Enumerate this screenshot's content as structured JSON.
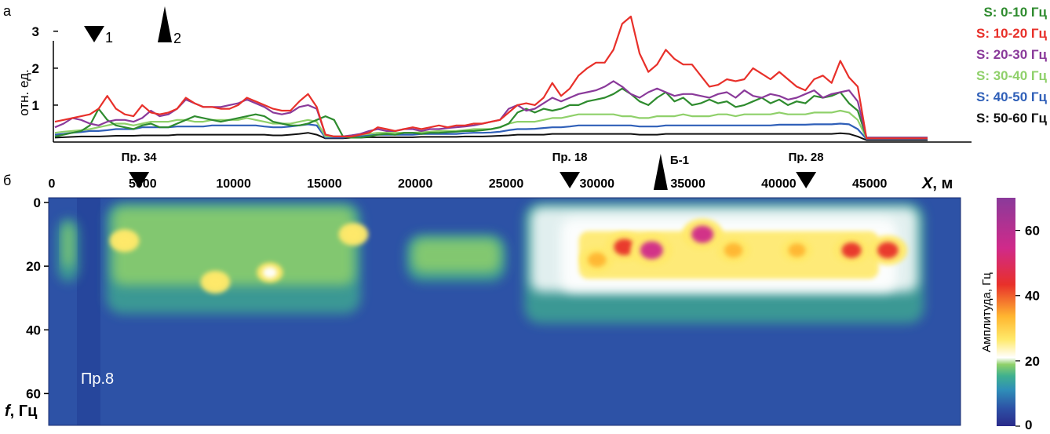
{
  "colors": {
    "S0_10": "#2e8b2e",
    "S10_20": "#e8302a",
    "S20_30": "#8a3a9a",
    "S30_40": "#8fd06a",
    "S40_50": "#2f5fb8",
    "S50_60": "#111111",
    "heat_background": "#2d52a6"
  },
  "chart_data": [
    {
      "panel": "а",
      "type": "line",
      "ylabel": "отн. ед.",
      "ylim": [
        0,
        3.4
      ],
      "yticks": [
        "1",
        "2",
        "3"
      ],
      "xlim": [
        0,
        50000
      ],
      "markers": [
        {
          "label": "1",
          "x": 2500,
          "direction": "down"
        },
        {
          "label": "2",
          "x": 6200,
          "direction": "up"
        }
      ],
      "legend": [
        "S:  0-10 Гц",
        "S: 10-20 Гц",
        "S: 20-30 Гц",
        "S: 30-40 Гц",
        "S: 40-50 Гц",
        "S: 50-60 Гц"
      ],
      "legend_position": "right",
      "x": [
        0,
        500,
        1000,
        1500,
        2000,
        2500,
        3000,
        3500,
        4000,
        4500,
        5000,
        5500,
        6000,
        6500,
        7000,
        7500,
        8000,
        8500,
        9000,
        9500,
        10000,
        10500,
        11000,
        11500,
        12000,
        12500,
        13000,
        13500,
        14000,
        14500,
        15000,
        15500,
        16000,
        16500,
        17000,
        17500,
        18000,
        18500,
        19000,
        19500,
        20000,
        20500,
        21000,
        21500,
        22000,
        22500,
        23000,
        23500,
        24000,
        24500,
        25000,
        25500,
        26000,
        26500,
        27000,
        27500,
        28000,
        28500,
        29000,
        29500,
        30000,
        30500,
        31000,
        31500,
        32000,
        32500,
        33000,
        33500,
        34000,
        34500,
        35000,
        35500,
        36000,
        36500,
        37000,
        37500,
        38000,
        38500,
        39000,
        39500,
        40000,
        40500,
        41000,
        41500,
        42000,
        42500,
        43000,
        43500,
        44000,
        44500,
        45000,
        45500,
        46000,
        46500,
        47000,
        47500,
        48000,
        48500,
        49000,
        49500,
        50000
      ],
      "series": [
        {
          "name": "S:  0-10 Гц",
          "values": [
            0.15,
            0.2,
            0.25,
            0.3,
            0.45,
            0.9,
            0.6,
            0.45,
            0.4,
            0.35,
            0.45,
            0.5,
            0.4,
            0.4,
            0.5,
            0.6,
            0.7,
            0.65,
            0.6,
            0.55,
            0.6,
            0.65,
            0.7,
            0.75,
            0.7,
            0.55,
            0.5,
            0.45,
            0.45,
            0.5,
            0.6,
            0.7,
            0.6,
            0.15,
            0.12,
            0.12,
            0.15,
            0.2,
            0.22,
            0.2,
            0.25,
            0.25,
            0.22,
            0.25,
            0.25,
            0.27,
            0.28,
            0.3,
            0.3,
            0.32,
            0.35,
            0.4,
            0.5,
            0.8,
            0.9,
            0.8,
            0.9,
            0.85,
            0.9,
            1.0,
            1.0,
            1.1,
            1.15,
            1.2,
            1.3,
            1.45,
            1.3,
            1.1,
            1.0,
            1.2,
            1.35,
            1.1,
            1.2,
            1.0,
            1.05,
            1.15,
            1.05,
            1.1,
            0.95,
            1.0,
            1.1,
            1.2,
            1.05,
            1.15,
            1.0,
            1.1,
            1.05,
            1.25,
            1.2,
            1.25,
            1.35,
            1.05,
            0.85,
            0.12,
            0.12,
            0.12,
            0.12,
            0.12,
            0.12,
            0.12,
            0.12
          ]
        },
        {
          "name": "S: 10-20 Гц",
          "values": [
            0.55,
            0.6,
            0.65,
            0.7,
            0.75,
            0.9,
            1.25,
            0.9,
            0.75,
            0.7,
            1.0,
            0.8,
            0.75,
            0.8,
            0.9,
            1.2,
            1.05,
            0.95,
            0.95,
            0.9,
            0.9,
            1.0,
            1.2,
            1.1,
            1.0,
            0.9,
            0.85,
            0.85,
            1.1,
            1.3,
            0.95,
            0.2,
            0.15,
            0.15,
            0.15,
            0.2,
            0.25,
            0.4,
            0.35,
            0.3,
            0.35,
            0.4,
            0.35,
            0.4,
            0.45,
            0.4,
            0.45,
            0.45,
            0.5,
            0.5,
            0.55,
            0.6,
            0.8,
            1.0,
            1.05,
            1.0,
            1.2,
            1.6,
            1.25,
            1.45,
            1.8,
            2.0,
            2.15,
            2.15,
            2.5,
            3.2,
            3.4,
            2.4,
            1.9,
            2.1,
            2.5,
            2.25,
            2.1,
            2.1,
            1.8,
            1.5,
            1.55,
            1.7,
            1.65,
            1.7,
            2.0,
            1.85,
            1.7,
            1.9,
            1.7,
            1.5,
            1.4,
            1.7,
            1.8,
            1.6,
            2.2,
            1.75,
            1.5,
            0.1,
            0.1,
            0.1,
            0.1,
            0.1,
            0.1,
            0.1,
            0.1
          ]
        },
        {
          "name": "S: 20-30 Гц",
          "values": [
            0.4,
            0.5,
            0.65,
            0.6,
            0.5,
            0.45,
            0.55,
            0.6,
            0.6,
            0.55,
            0.65,
            0.85,
            0.7,
            0.75,
            0.9,
            1.15,
            1.05,
            0.95,
            0.95,
            0.95,
            1.0,
            1.05,
            1.15,
            1.05,
            0.95,
            0.8,
            0.75,
            0.8,
            0.95,
            1.0,
            0.9,
            0.2,
            0.15,
            0.15,
            0.18,
            0.22,
            0.3,
            0.35,
            0.3,
            0.3,
            0.35,
            0.35,
            0.3,
            0.35,
            0.35,
            0.38,
            0.4,
            0.42,
            0.45,
            0.5,
            0.55,
            0.6,
            0.9,
            1.0,
            0.85,
            0.9,
            1.05,
            1.2,
            1.1,
            1.2,
            1.3,
            1.35,
            1.4,
            1.5,
            1.65,
            1.5,
            1.3,
            1.2,
            1.35,
            1.45,
            1.35,
            1.25,
            1.3,
            1.3,
            1.25,
            1.2,
            1.3,
            1.35,
            1.2,
            1.4,
            1.25,
            1.2,
            1.3,
            1.25,
            1.15,
            1.2,
            1.3,
            1.4,
            1.2,
            1.3,
            1.35,
            1.4,
            1.1,
            0.12,
            0.12,
            0.12,
            0.12,
            0.12,
            0.12,
            0.12,
            0.12
          ]
        },
        {
          "name": "S: 30-40 Гц",
          "values": [
            0.25,
            0.28,
            0.3,
            0.32,
            0.35,
            0.4,
            0.45,
            0.5,
            0.5,
            0.45,
            0.5,
            0.55,
            0.55,
            0.55,
            0.6,
            0.6,
            0.55,
            0.55,
            0.6,
            0.6,
            0.6,
            0.6,
            0.65,
            0.6,
            0.55,
            0.5,
            0.5,
            0.5,
            0.55,
            0.6,
            0.55,
            0.15,
            0.15,
            0.15,
            0.18,
            0.2,
            0.22,
            0.25,
            0.25,
            0.25,
            0.25,
            0.25,
            0.27,
            0.28,
            0.3,
            0.3,
            0.3,
            0.32,
            0.35,
            0.35,
            0.35,
            0.4,
            0.5,
            0.55,
            0.55,
            0.55,
            0.6,
            0.65,
            0.65,
            0.7,
            0.75,
            0.75,
            0.75,
            0.75,
            0.75,
            0.7,
            0.7,
            0.65,
            0.65,
            0.7,
            0.7,
            0.7,
            0.75,
            0.7,
            0.7,
            0.7,
            0.75,
            0.75,
            0.7,
            0.75,
            0.75,
            0.75,
            0.75,
            0.8,
            0.75,
            0.75,
            0.75,
            0.8,
            0.8,
            0.8,
            0.85,
            0.8,
            0.6,
            0.1,
            0.1,
            0.1,
            0.1,
            0.1,
            0.1,
            0.1,
            0.1
          ]
        },
        {
          "name": "S: 40-50 Гц",
          "values": [
            0.2,
            0.22,
            0.25,
            0.27,
            0.3,
            0.3,
            0.32,
            0.35,
            0.35,
            0.35,
            0.4,
            0.4,
            0.4,
            0.4,
            0.42,
            0.42,
            0.42,
            0.42,
            0.45,
            0.45,
            0.45,
            0.45,
            0.45,
            0.45,
            0.42,
            0.4,
            0.4,
            0.42,
            0.45,
            0.48,
            0.45,
            0.12,
            0.12,
            0.12,
            0.15,
            0.17,
            0.18,
            0.2,
            0.2,
            0.2,
            0.2,
            0.2,
            0.22,
            0.22,
            0.22,
            0.22,
            0.22,
            0.24,
            0.25,
            0.25,
            0.26,
            0.28,
            0.32,
            0.35,
            0.35,
            0.36,
            0.38,
            0.4,
            0.4,
            0.42,
            0.45,
            0.45,
            0.45,
            0.45,
            0.45,
            0.45,
            0.45,
            0.42,
            0.42,
            0.42,
            0.45,
            0.45,
            0.45,
            0.45,
            0.45,
            0.45,
            0.45,
            0.45,
            0.45,
            0.45,
            0.45,
            0.45,
            0.45,
            0.47,
            0.47,
            0.47,
            0.47,
            0.48,
            0.48,
            0.48,
            0.5,
            0.48,
            0.35,
            0.08,
            0.08,
            0.08,
            0.08,
            0.08,
            0.08,
            0.08,
            0.08
          ]
        },
        {
          "name": "S: 50-60 Гц",
          "values": [
            0.12,
            0.13,
            0.14,
            0.15,
            0.15,
            0.15,
            0.16,
            0.17,
            0.17,
            0.17,
            0.18,
            0.18,
            0.18,
            0.18,
            0.2,
            0.2,
            0.2,
            0.2,
            0.2,
            0.2,
            0.2,
            0.2,
            0.2,
            0.2,
            0.2,
            0.18,
            0.18,
            0.2,
            0.22,
            0.25,
            0.2,
            0.1,
            0.1,
            0.1,
            0.12,
            0.12,
            0.13,
            0.13,
            0.13,
            0.13,
            0.13,
            0.13,
            0.14,
            0.14,
            0.14,
            0.14,
            0.14,
            0.15,
            0.15,
            0.15,
            0.16,
            0.17,
            0.18,
            0.2,
            0.2,
            0.2,
            0.2,
            0.22,
            0.22,
            0.22,
            0.22,
            0.22,
            0.22,
            0.22,
            0.22,
            0.22,
            0.22,
            0.2,
            0.2,
            0.2,
            0.22,
            0.22,
            0.22,
            0.22,
            0.22,
            0.22,
            0.22,
            0.22,
            0.22,
            0.22,
            0.22,
            0.22,
            0.22,
            0.22,
            0.22,
            0.22,
            0.22,
            0.22,
            0.22,
            0.22,
            0.24,
            0.22,
            0.15,
            0.05,
            0.05,
            0.05,
            0.05,
            0.05,
            0.05,
            0.05,
            0.05
          ]
        }
      ]
    },
    {
      "panel": "б",
      "type": "heatmap",
      "xlabel": "X, м",
      "ylabel": "f, Гц",
      "xlim": [
        0,
        50000
      ],
      "ylim": [
        0,
        70
      ],
      "xticks": [
        0,
        5000,
        10000,
        15000,
        20000,
        25000,
        30000,
        35000,
        40000,
        45000
      ],
      "yticks": [
        0,
        20,
        40,
        60
      ],
      "colorbar": {
        "label": "Амплитуда, Гц",
        "ticks": [
          0,
          20,
          40,
          60
        ],
        "range": [
          0,
          70
        ]
      },
      "profile_label": "Пр.8",
      "markers": [
        {
          "label": "Пр. 34",
          "x": 4800,
          "direction": "down"
        },
        {
          "label": "Пр. 18",
          "x": 28500,
          "direction": "down"
        },
        {
          "label": "Б-1",
          "x": 33500,
          "direction": "up"
        },
        {
          "label": "Пр. 28",
          "x": 41500,
          "direction": "down"
        }
      ],
      "hotspots": [
        {
          "x": 4000,
          "f": 12,
          "amplitude": 30
        },
        {
          "x": 9000,
          "f": 25,
          "amplitude": 30
        },
        {
          "x": 12000,
          "f": 22,
          "amplitude": 22
        },
        {
          "x": 16600,
          "f": 10,
          "amplitude": 30
        },
        {
          "x": 30000,
          "f": 18,
          "amplitude": 40
        },
        {
          "x": 31500,
          "f": 14,
          "amplitude": 50
        },
        {
          "x": 33000,
          "f": 15,
          "amplitude": 58
        },
        {
          "x": 35800,
          "f": 10,
          "amplitude": 55
        },
        {
          "x": 37500,
          "f": 15,
          "amplitude": 40
        },
        {
          "x": 41000,
          "f": 15,
          "amplitude": 35
        },
        {
          "x": 44000,
          "f": 15,
          "amplitude": 45
        },
        {
          "x": 46000,
          "f": 15,
          "amplitude": 50
        }
      ],
      "active_bands": [
        {
          "x0": 300,
          "x1": 1500,
          "f0": 5,
          "f1": 25,
          "amplitude": 12
        },
        {
          "x0": 3000,
          "x1": 17000,
          "f0": 0,
          "f1": 35,
          "amplitude": 15
        },
        {
          "x0": 19500,
          "x1": 25000,
          "f0": 10,
          "f1": 25,
          "amplitude": 12
        },
        {
          "x0": 26000,
          "x1": 48000,
          "f0": 0,
          "f1": 38,
          "amplitude": 20
        }
      ]
    }
  ],
  "panel_a": {
    "panel_label": "а",
    "ylabel": "отн. ед.",
    "marker1_label": "1",
    "marker2_label": "2"
  },
  "panel_b": {
    "panel_label": "б",
    "xlabel_italic": "X",
    "xlabel_unit": ", м",
    "ylabel_italic": "f",
    "ylabel_unit": ", Гц",
    "profile_label": "Пр.8",
    "colorbar_label": "Амплитуда, Гц"
  },
  "legend": {
    "items": [
      {
        "label": "S:  0-10 Гц"
      },
      {
        "label": "S: 10-20 Гц"
      },
      {
        "label": "S: 20-30 Гц"
      },
      {
        "label": "S: 30-40 Гц"
      },
      {
        "label": "S: 40-50 Гц"
      },
      {
        "label": "S: 50-60 Гц"
      }
    ]
  }
}
